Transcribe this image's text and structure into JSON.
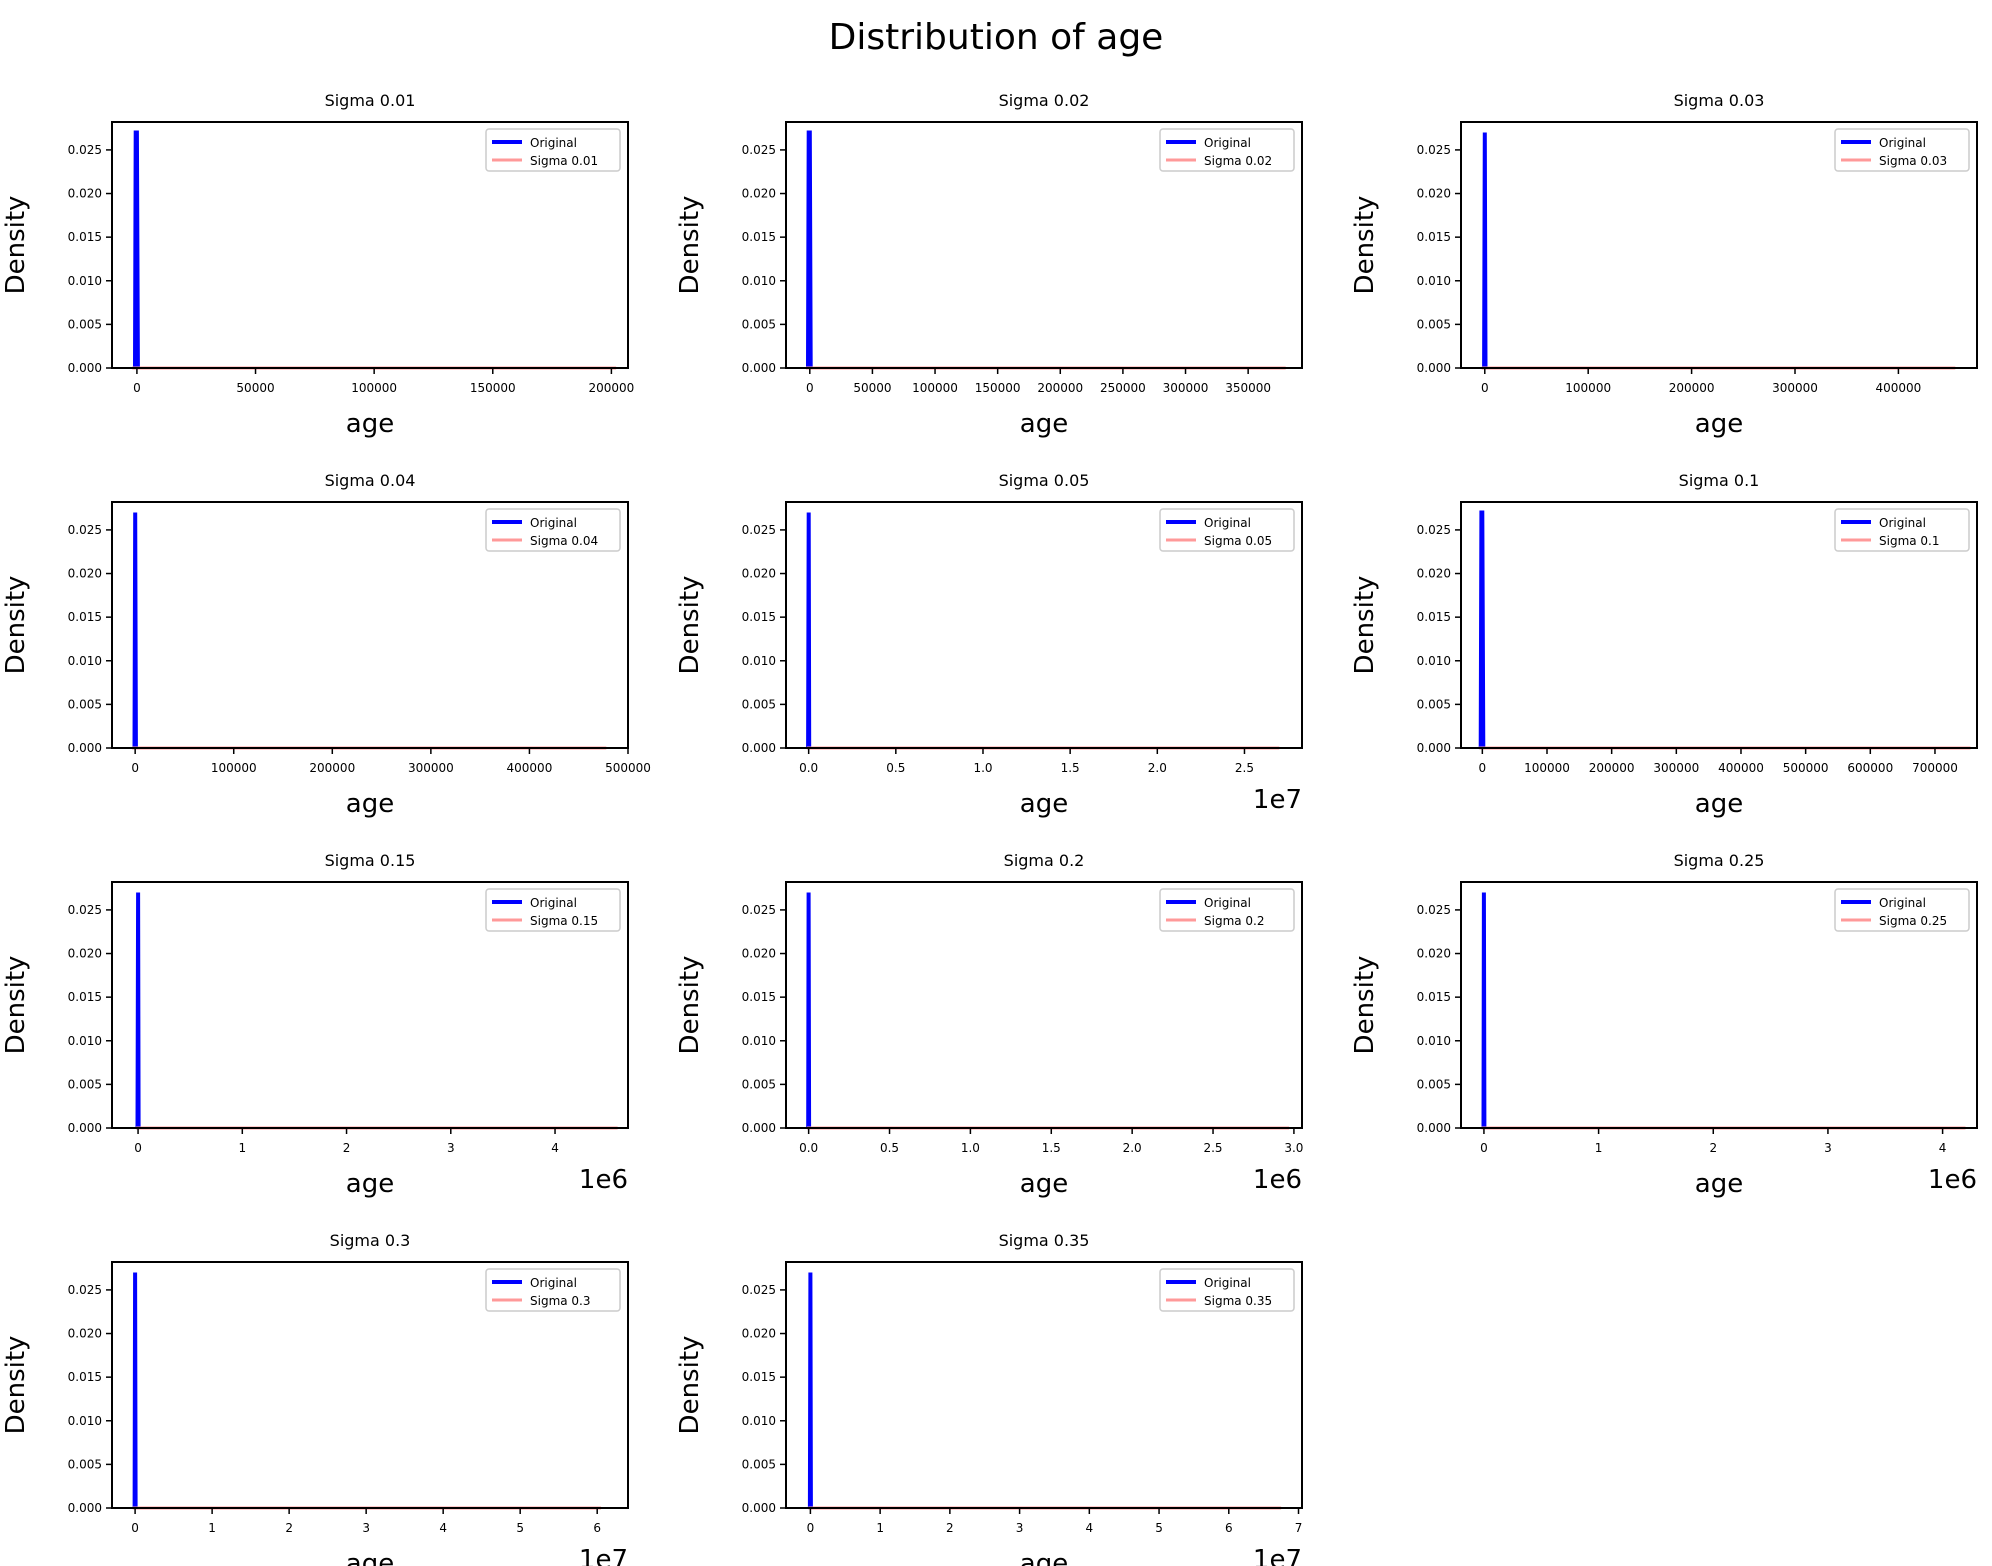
{
  "figure": {
    "title": "Distribution of age"
  },
  "chart_data": [
    {
      "type": "line",
      "title": "Sigma 0.01",
      "xlabel": "age",
      "ylabel": "Density",
      "offset_label": "",
      "xlim": [
        -10500,
        207000
      ],
      "ylim": [
        0,
        0.0282
      ],
      "xticks": [
        0,
        50000,
        100000,
        150000,
        200000
      ],
      "xtick_labels": [
        "0",
        "50000",
        "100000",
        "150000",
        "200000"
      ],
      "yticks": [
        0,
        0.005,
        0.01,
        0.015,
        0.02,
        0.025
      ],
      "ytick_labels": [
        "0.000",
        "0.005",
        "0.010",
        "0.015",
        "0.020",
        "0.025"
      ],
      "legend": "upper right",
      "series": [
        {
          "name": "Original",
          "color": "#0000ff",
          "values": [
            [
              -800,
              0
            ],
            [
              -500,
              0.027
            ],
            [
              0,
              0.027
            ],
            [
              400,
              0
            ]
          ]
        },
        {
          "name": "Sigma 0.01",
          "color": "#ff9999",
          "values": [
            [
              -2000,
              0
            ],
            [
              202000,
              0
            ]
          ]
        }
      ]
    },
    {
      "type": "line",
      "title": "Sigma 0.02",
      "xlabel": "age",
      "ylabel": "Density",
      "offset_label": "",
      "xlim": [
        -19000,
        393000
      ],
      "ylim": [
        0,
        0.0282
      ],
      "xticks": [
        0,
        50000,
        100000,
        150000,
        200000,
        250000,
        300000,
        350000
      ],
      "xtick_labels": [
        "0",
        "50000",
        "100000",
        "150000",
        "200000",
        "250000",
        "300000",
        "350000"
      ],
      "yticks": [
        0,
        0.005,
        0.01,
        0.015,
        0.02,
        0.025
      ],
      "ytick_labels": [
        "0.000",
        "0.005",
        "0.010",
        "0.015",
        "0.020",
        "0.025"
      ],
      "legend": "upper right",
      "series": [
        {
          "name": "Original",
          "color": "#0000ff",
          "values": [
            [
              -1400,
              0
            ],
            [
              -900,
              0.027
            ],
            [
              0,
              0.027
            ],
            [
              700,
              0
            ]
          ]
        },
        {
          "name": "Sigma 0.02",
          "color": "#ff9999",
          "values": [
            [
              -3000,
              0
            ],
            [
              380000,
              0
            ]
          ]
        }
      ]
    },
    {
      "type": "line",
      "title": "Sigma 0.03",
      "xlabel": "age",
      "ylabel": "Density",
      "offset_label": "",
      "xlim": [
        -23000,
        476000
      ],
      "ylim": [
        0,
        0.0282
      ],
      "xticks": [
        0,
        100000,
        200000,
        300000,
        400000
      ],
      "xtick_labels": [
        "0",
        "100000",
        "200000",
        "300000",
        "400000"
      ],
      "yticks": [
        0,
        0.005,
        0.01,
        0.015,
        0.02,
        0.025
      ],
      "ytick_labels": [
        "0.000",
        "0.005",
        "0.010",
        "0.015",
        "0.020",
        "0.025"
      ],
      "legend": "upper right",
      "series": [
        {
          "name": "Original",
          "color": "#0000ff",
          "values": [
            [
              -700,
              0
            ],
            [
              0,
              0.027
            ],
            [
              700,
              0
            ]
          ]
        },
        {
          "name": "Sigma 0.03",
          "color": "#ff9999",
          "values": [
            [
              -3000,
              0
            ],
            [
              455000,
              0
            ]
          ]
        }
      ]
    },
    {
      "type": "line",
      "title": "Sigma 0.04",
      "xlabel": "age",
      "ylabel": "Density",
      "offset_label": "",
      "xlim": [
        -23500,
        500000
      ],
      "ylim": [
        0,
        0.0282
      ],
      "xticks": [
        0,
        100000,
        200000,
        300000,
        400000,
        500000
      ],
      "xtick_labels": [
        "0",
        "100000",
        "200000",
        "300000",
        "400000",
        "500000"
      ],
      "yticks": [
        0,
        0.005,
        0.01,
        0.015,
        0.02,
        0.025
      ],
      "ytick_labels": [
        "0.000",
        "0.005",
        "0.010",
        "0.015",
        "0.020",
        "0.025"
      ],
      "legend": "upper right",
      "series": [
        {
          "name": "Original",
          "color": "#0000ff",
          "values": [
            [
              -700,
              0
            ],
            [
              0,
              0.027
            ],
            [
              700,
              0
            ]
          ]
        },
        {
          "name": "Sigma 0.04",
          "color": "#ff9999",
          "values": [
            [
              -3000,
              0
            ],
            [
              478000,
              0
            ]
          ]
        }
      ]
    },
    {
      "type": "line",
      "title": "Sigma 0.05",
      "xlabel": "age",
      "ylabel": "Density",
      "offset_label": "1e7",
      "xlim": [
        -0.13,
        2.83
      ],
      "ylim": [
        0,
        0.0282
      ],
      "xticks": [
        0,
        0.5,
        1,
        1.5,
        2,
        2.5
      ],
      "xtick_labels": [
        "0.0",
        "0.5",
        "1.0",
        "1.5",
        "2.0",
        "2.5"
      ],
      "yticks": [
        0,
        0.005,
        0.01,
        0.015,
        0.02,
        0.025
      ],
      "ytick_labels": [
        "0.000",
        "0.005",
        "0.010",
        "0.015",
        "0.020",
        "0.025"
      ],
      "legend": "upper right",
      "series": [
        {
          "name": "Original",
          "color": "#0000ff",
          "values": [
            [
              -0.003,
              0
            ],
            [
              0,
              0.027
            ],
            [
              0.003,
              0
            ]
          ]
        },
        {
          "name": "Sigma 0.05",
          "color": "#ff9999",
          "values": [
            [
              -0.01,
              0
            ],
            [
              2.7,
              0
            ]
          ]
        }
      ]
    },
    {
      "type": "line",
      "title": "Sigma 0.1",
      "xlabel": "age",
      "ylabel": "Density",
      "offset_label": "",
      "xlim": [
        -33000,
        765000
      ],
      "ylim": [
        0,
        0.0282
      ],
      "xticks": [
        0,
        100000,
        200000,
        300000,
        400000,
        500000,
        600000,
        700000
      ],
      "xtick_labels": [
        "0",
        "100000",
        "200000",
        "300000",
        "400000",
        "500000",
        "600000",
        "700000"
      ],
      "yticks": [
        0,
        0.005,
        0.01,
        0.015,
        0.02,
        0.025
      ],
      "ytick_labels": [
        "0.000",
        "0.005",
        "0.010",
        "0.015",
        "0.020",
        "0.025"
      ],
      "legend": "upper right",
      "series": [
        {
          "name": "Original",
          "color": "#0000ff",
          "values": [
            [
              -2500,
              0
            ],
            [
              -1500,
              0.027
            ],
            [
              0,
              0.027
            ],
            [
              1500,
              0
            ]
          ]
        },
        {
          "name": "Sigma 0.1",
          "color": "#ff9999",
          "values": [
            [
              -5000,
              0
            ],
            [
              755000,
              0
            ]
          ]
        }
      ]
    },
    {
      "type": "line",
      "title": "Sigma 0.15",
      "xlabel": "age",
      "ylabel": "Density",
      "offset_label": "1e6",
      "xlim": [
        -0.25,
        4.7
      ],
      "ylim": [
        0,
        0.0282
      ],
      "xticks": [
        0,
        1,
        2,
        3,
        4
      ],
      "xtick_labels": [
        "0",
        "1",
        "2",
        "3",
        "4"
      ],
      "yticks": [
        0,
        0.005,
        0.01,
        0.015,
        0.02,
        0.025
      ],
      "ytick_labels": [
        "0.000",
        "0.005",
        "0.010",
        "0.015",
        "0.020",
        "0.025"
      ],
      "legend": "upper right",
      "series": [
        {
          "name": "Original",
          "color": "#0000ff",
          "values": [
            [
              -0.005,
              0
            ],
            [
              0,
              0.027
            ],
            [
              0.005,
              0
            ]
          ]
        },
        {
          "name": "Sigma 0.15",
          "color": "#ff9999",
          "values": [
            [
              -0.02,
              0
            ],
            [
              4.6,
              0
            ]
          ]
        }
      ]
    },
    {
      "type": "line",
      "title": "Sigma 0.2",
      "xlabel": "age",
      "ylabel": "Density",
      "offset_label": "1e6",
      "xlim": [
        -0.14,
        3.05
      ],
      "ylim": [
        0,
        0.0282
      ],
      "xticks": [
        0,
        0.5,
        1,
        1.5,
        2,
        2.5,
        3
      ],
      "xtick_labels": [
        "0.0",
        "0.5",
        "1.0",
        "1.5",
        "2.0",
        "2.5",
        "3.0"
      ],
      "yticks": [
        0,
        0.005,
        0.01,
        0.015,
        0.02,
        0.025
      ],
      "ytick_labels": [
        "0.000",
        "0.005",
        "0.010",
        "0.015",
        "0.020",
        "0.025"
      ],
      "legend": "upper right",
      "series": [
        {
          "name": "Original",
          "color": "#0000ff",
          "values": [
            [
              -0.003,
              0
            ],
            [
              0,
              0.027
            ],
            [
              0.003,
              0
            ]
          ]
        },
        {
          "name": "Sigma 0.2",
          "color": "#ff9999",
          "values": [
            [
              -0.01,
              0
            ],
            [
              2.97,
              0
            ]
          ]
        }
      ]
    },
    {
      "type": "line",
      "title": "Sigma 0.25",
      "xlabel": "age",
      "ylabel": "Density",
      "offset_label": "1e6",
      "xlim": [
        -0.2,
        4.3
      ],
      "ylim": [
        0,
        0.0282
      ],
      "xticks": [
        0,
        1,
        2,
        3,
        4
      ],
      "xtick_labels": [
        "0",
        "1",
        "2",
        "3",
        "4"
      ],
      "yticks": [
        0,
        0.005,
        0.01,
        0.015,
        0.02,
        0.025
      ],
      "ytick_labels": [
        "0.000",
        "0.005",
        "0.010",
        "0.015",
        "0.020",
        "0.025"
      ],
      "legend": "upper right",
      "series": [
        {
          "name": "Original",
          "color": "#0000ff",
          "values": [
            [
              -0.004,
              0
            ],
            [
              0,
              0.027
            ],
            [
              0.004,
              0
            ]
          ]
        },
        {
          "name": "Sigma 0.25",
          "color": "#ff9999",
          "values": [
            [
              -0.02,
              0
            ],
            [
              4.2,
              0
            ]
          ]
        }
      ]
    },
    {
      "type": "line",
      "title": "Sigma 0.3",
      "xlabel": "age",
      "ylabel": "Density",
      "offset_label": "1e7",
      "xlim": [
        -0.3,
        6.4
      ],
      "ylim": [
        0,
        0.0282
      ],
      "xticks": [
        0,
        1,
        2,
        3,
        4,
        5,
        6
      ],
      "xtick_labels": [
        "0",
        "1",
        "2",
        "3",
        "4",
        "5",
        "6"
      ],
      "yticks": [
        0,
        0.005,
        0.01,
        0.015,
        0.02,
        0.025
      ],
      "ytick_labels": [
        "0.000",
        "0.005",
        "0.010",
        "0.015",
        "0.020",
        "0.025"
      ],
      "legend": "upper right",
      "series": [
        {
          "name": "Original",
          "color": "#0000ff",
          "values": [
            [
              -0.006,
              0
            ],
            [
              0,
              0.027
            ],
            [
              0.006,
              0
            ]
          ]
        },
        {
          "name": "Sigma 0.3",
          "color": "#ff9999",
          "values": [
            [
              -0.03,
              0
            ],
            [
              6.05,
              0
            ]
          ]
        }
      ]
    },
    {
      "type": "line",
      "title": "Sigma 0.35",
      "xlabel": "age",
      "ylabel": "Density",
      "offset_label": "1e7",
      "xlim": [
        -0.35,
        7.05
      ],
      "ylim": [
        0,
        0.0282
      ],
      "xticks": [
        0,
        1,
        2,
        3,
        4,
        5,
        6,
        7
      ],
      "xtick_labels": [
        "0",
        "1",
        "2",
        "3",
        "4",
        "5",
        "6",
        "7"
      ],
      "yticks": [
        0,
        0.005,
        0.01,
        0.015,
        0.02,
        0.025
      ],
      "ytick_labels": [
        "0.000",
        "0.005",
        "0.010",
        "0.015",
        "0.020",
        "0.025"
      ],
      "legend": "upper right",
      "series": [
        {
          "name": "Original",
          "color": "#0000ff",
          "values": [
            [
              -0.007,
              0
            ],
            [
              0,
              0.027
            ],
            [
              0.007,
              0
            ]
          ]
        },
        {
          "name": "Sigma 0.35",
          "color": "#ff9999",
          "values": [
            [
              -0.03,
              0
            ],
            [
              6.75,
              0
            ]
          ]
        }
      ]
    }
  ]
}
